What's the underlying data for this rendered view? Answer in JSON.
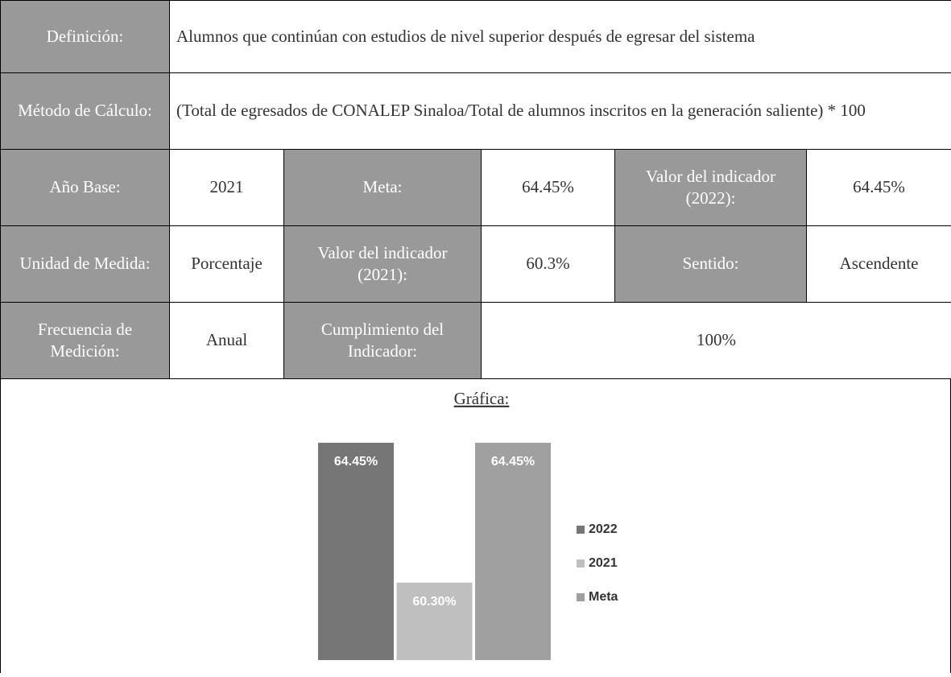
{
  "table": {
    "rows": [
      [
        "Definición:",
        "Alumnos que continúan con estudios de nivel superior después de egresar del sistema"
      ],
      [
        "Método de Cálculo:",
        "(Total de egresados de CONALEP Sinaloa/Total de alumnos inscritos en la generación saliente) * 100"
      ],
      [
        "Año Base:",
        "2021",
        "Meta:",
        "64.45%",
        "Valor del indicador (2022):",
        "64.45%"
      ],
      [
        "Unidad de Medida:",
        "Porcentaje",
        "Valor del indicador (2021):",
        "60.3%",
        "Sentido:",
        "Ascendente"
      ],
      [
        "Frecuencia de Medición:",
        "Anual",
        "Cumplimiento del Indicador:",
        "100%"
      ]
    ]
  },
  "chart_data": {
    "type": "bar",
    "title": "Gráfica:",
    "ylim": [
      58,
      65
    ],
    "series": [
      {
        "name": "2022",
        "color": "#767676",
        "values": [
          64.45
        ],
        "value_labels": [
          "64.45%"
        ]
      },
      {
        "name": "2021",
        "color": "#bfbfbf",
        "values": [
          60.3
        ],
        "value_labels": [
          "60.30%"
        ]
      },
      {
        "name": "Meta",
        "color": "#a0a0a0",
        "values": [
          64.45
        ],
        "value_labels": [
          "64.45%"
        ]
      }
    ]
  }
}
